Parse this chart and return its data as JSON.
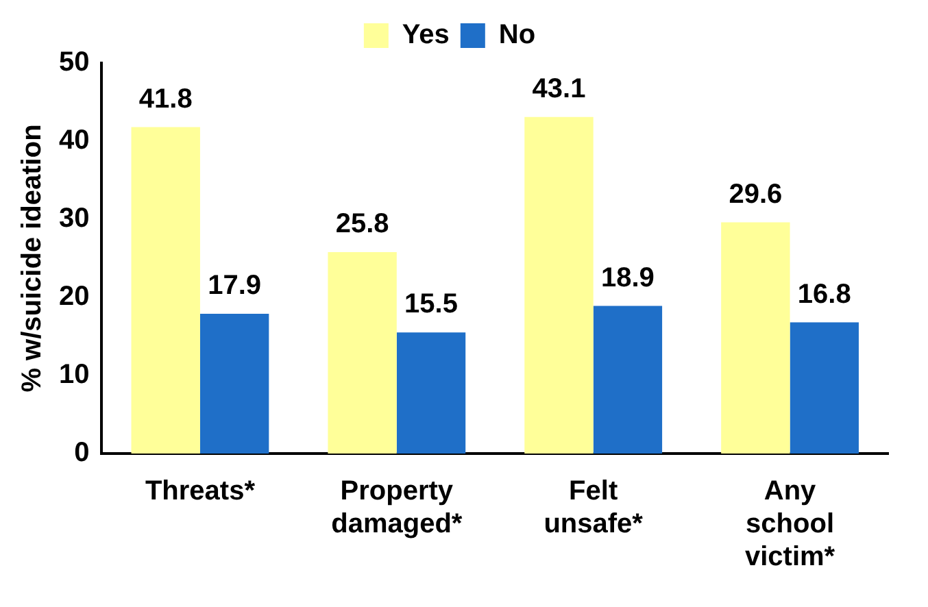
{
  "chart_data": {
    "type": "bar",
    "ylabel": "% w/suicide ideation",
    "categories": [
      "Threats*",
      "Property damaged*",
      "Felt unsafe*",
      "Any school victim*"
    ],
    "series": [
      {
        "name": "Yes",
        "color": "#ffff99",
        "values": [
          41.8,
          25.8,
          43.1,
          29.6
        ]
      },
      {
        "name": "No",
        "color": "#1f6fc8",
        "values": [
          17.9,
          15.5,
          18.9,
          16.8
        ]
      }
    ],
    "ylim": [
      0,
      50
    ],
    "yticks": [
      0,
      10,
      20,
      30,
      40,
      50
    ],
    "grid": false,
    "legend": "top",
    "data_labels": true
  }
}
